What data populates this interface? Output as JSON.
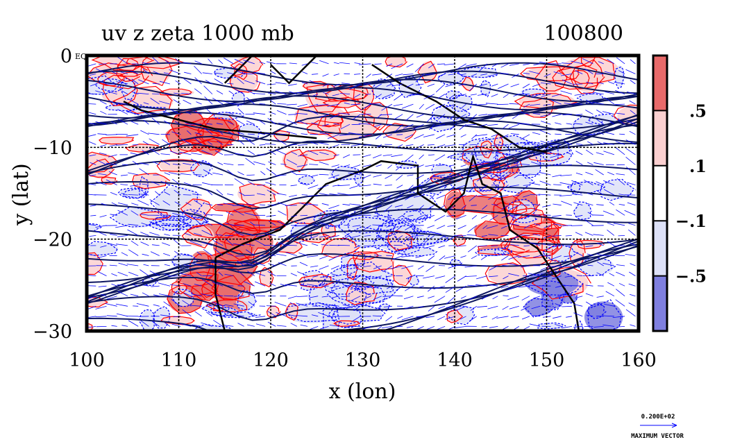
{
  "chart_data": {
    "type": "heatmap",
    "title": "uv z zeta 1000 mb",
    "date_label": "100800",
    "xlabel": "x (lon)",
    "ylabel": "y (lat)",
    "xlim": [
      100,
      160
    ],
    "ylim": [
      -30,
      0
    ],
    "x_ticks": [
      "100",
      "110",
      "120",
      "130",
      "140",
      "150",
      "160"
    ],
    "y_ticks": [
      "0",
      "−10",
      "−20",
      "−30"
    ],
    "y_top_tick_suffix": "EQ",
    "grid": true,
    "colorbar": {
      "labels": [
        ".5",
        ".1",
        "−.1",
        "−.5"
      ],
      "levels": [
        -0.5,
        -0.1,
        0.1,
        0.5
      ],
      "colors": [
        "#7f7fdf",
        "#dde1f7",
        "#ffffff",
        "#fbd0d0",
        "#e86a6a"
      ]
    },
    "contour_line_color": "#0d1660",
    "zeta_contour_colors": {
      "positive": "#ff0000",
      "negative": "#0000ff"
    },
    "vector_color": "#0000ff",
    "vector_legend": {
      "value": "0.200E+02",
      "label": "MAXIMUM VECTOR"
    },
    "positive_regions": [
      {
        "lon": 105,
        "lat": -3,
        "value": 0.3
      },
      {
        "lon": 112,
        "lat": -7,
        "value": 0.6
      },
      {
        "lon": 116,
        "lat": -19,
        "value": 0.6
      },
      {
        "lon": 114,
        "lat": -25,
        "value": 0.6
      },
      {
        "lon": 143,
        "lat": -14,
        "value": 0.6
      },
      {
        "lon": 147,
        "lat": -19,
        "value": 0.6
      },
      {
        "lon": 151,
        "lat": -3,
        "value": 0.3
      },
      {
        "lon": 150,
        "lat": -23,
        "value": 0.3
      },
      {
        "lon": 129,
        "lat": -5,
        "value": 0.3
      }
    ],
    "negative_regions": [
      {
        "lon": 128,
        "lat": -26,
        "value": -0.3
      },
      {
        "lon": 146,
        "lat": -11,
        "value": -0.3
      },
      {
        "lon": 153,
        "lat": -26,
        "value": -0.6
      },
      {
        "lon": 134,
        "lat": -19,
        "value": -0.3
      },
      {
        "lon": 108,
        "lat": -17,
        "value": -0.3
      }
    ]
  }
}
